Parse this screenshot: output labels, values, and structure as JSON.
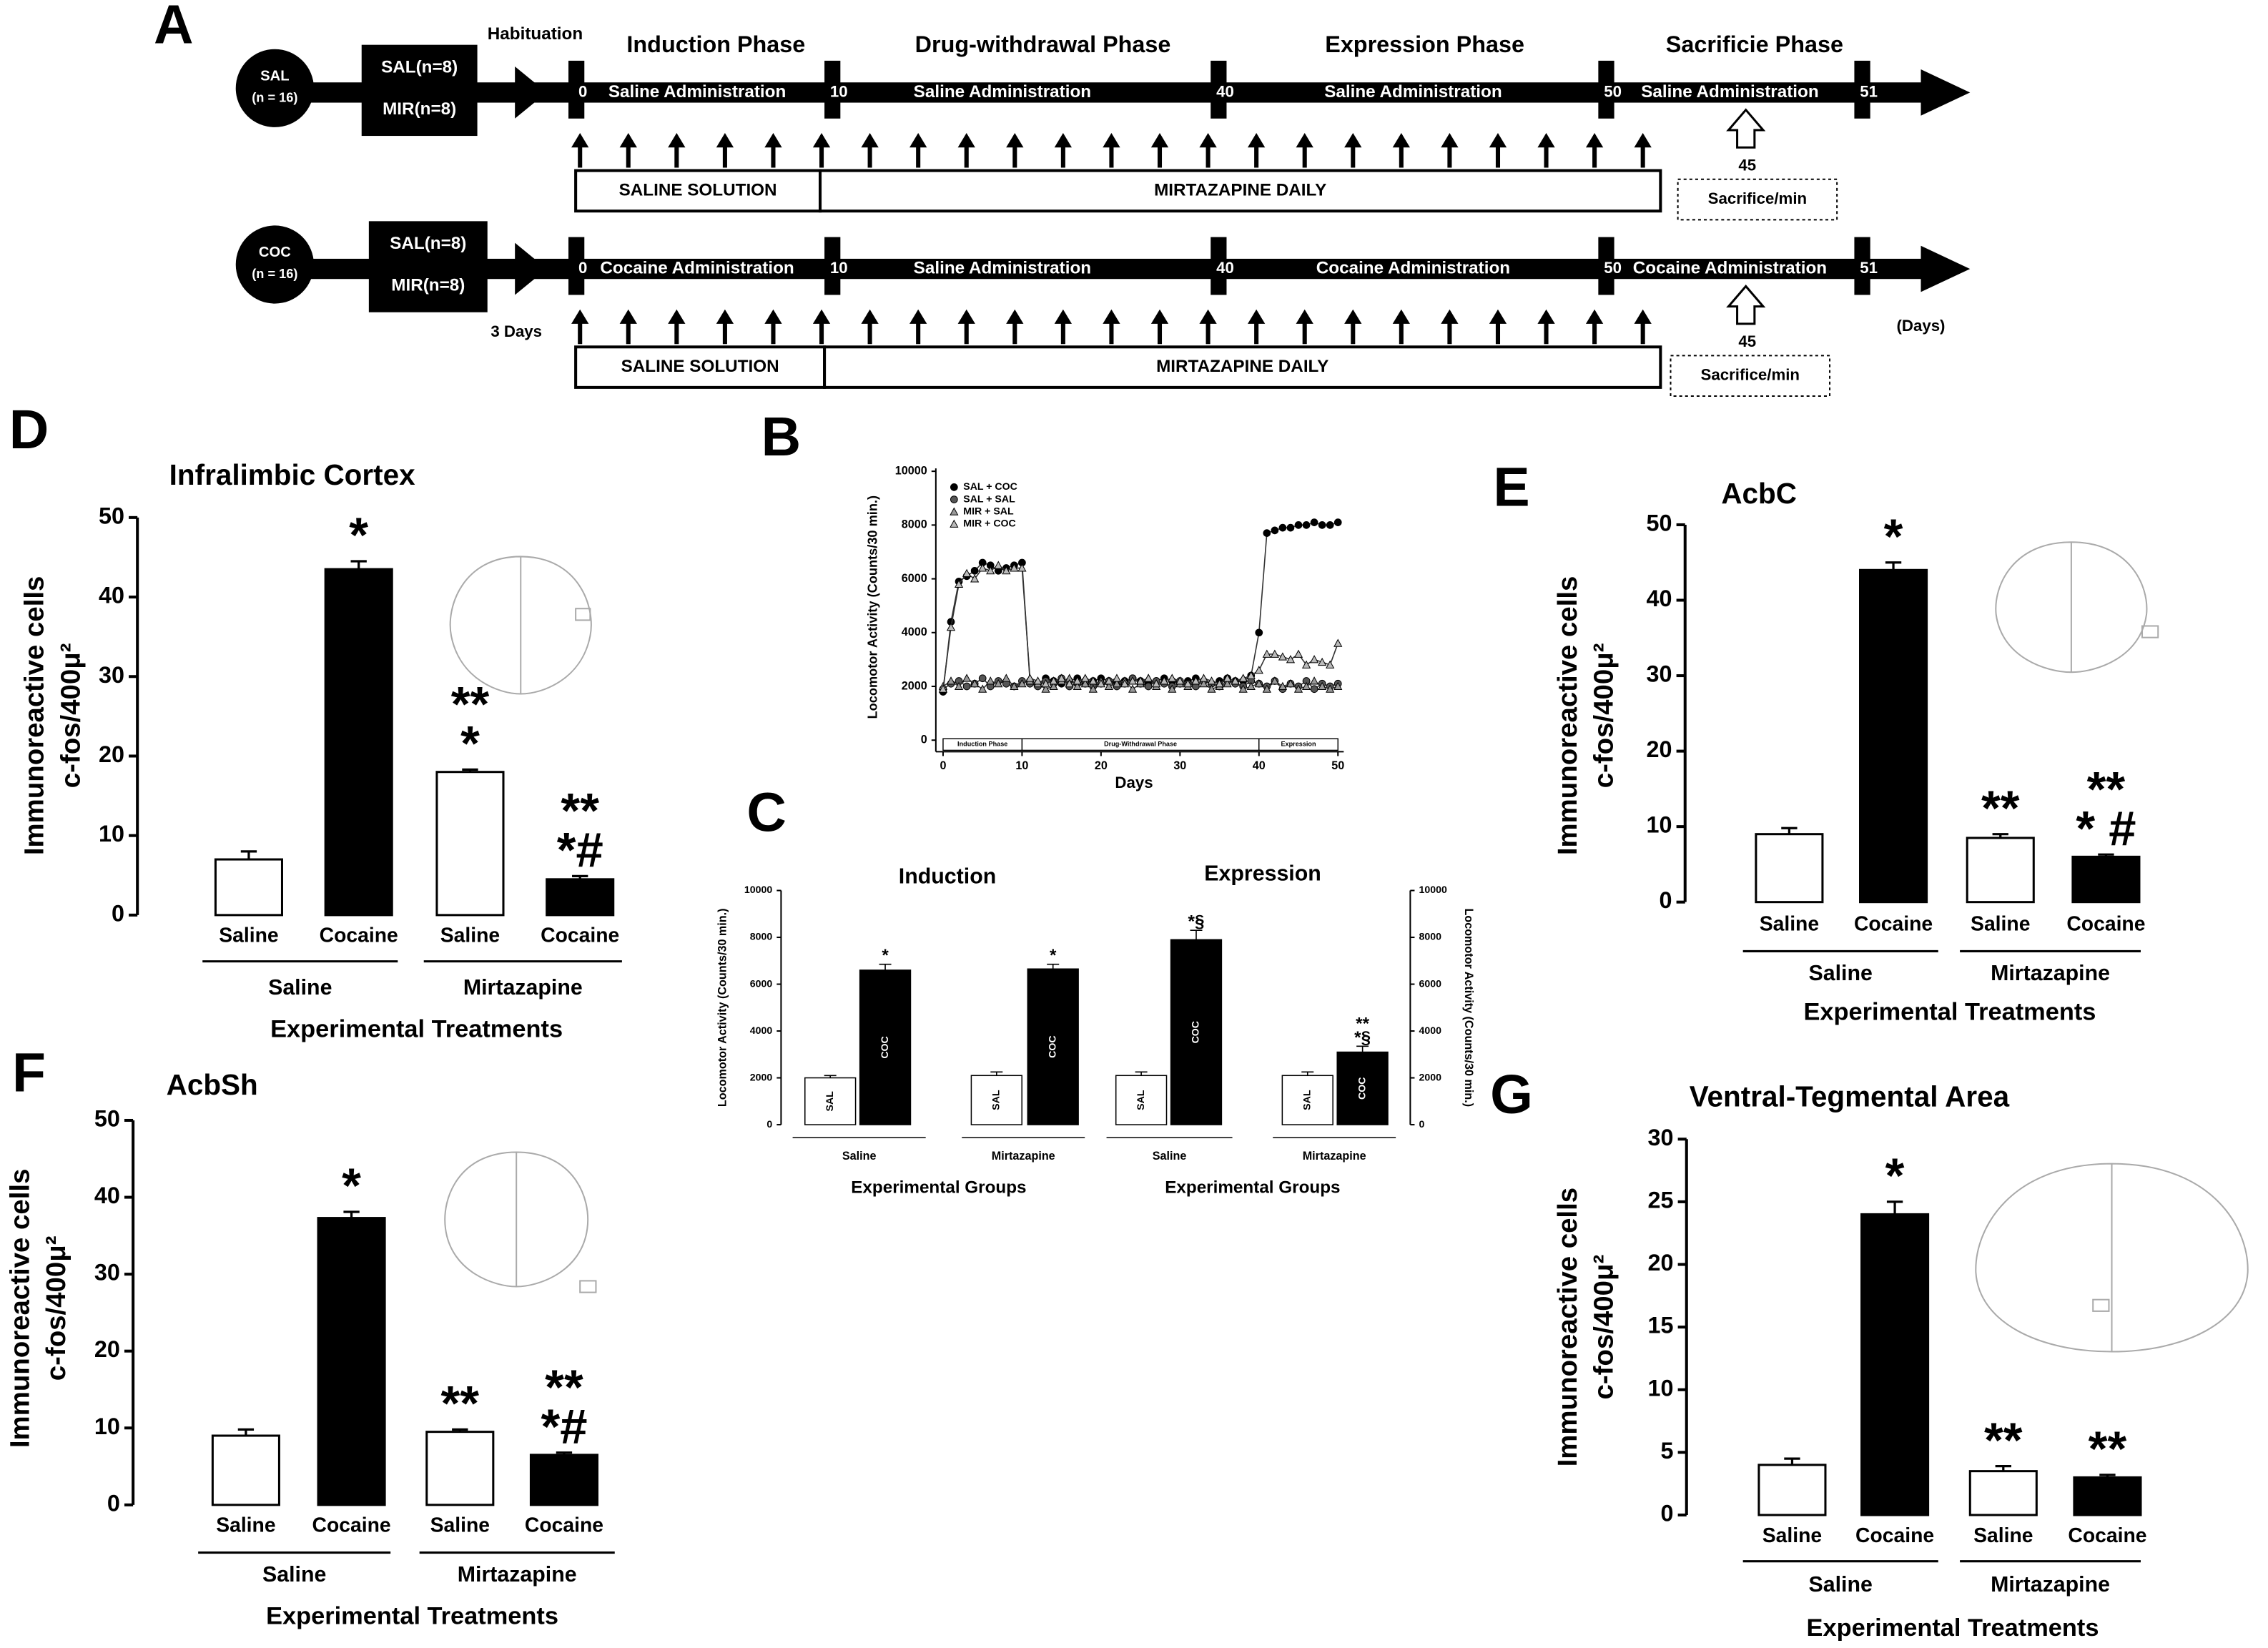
{
  "timeline": {
    "panel": "A",
    "habituation": "Habituation",
    "habituation_duration": "3 Days",
    "unit": "(Days)",
    "phases": [
      "Induction Phase",
      "Drug-withdrawal Phase",
      "Expression Phase",
      "Sacrificie Phase"
    ],
    "days": [
      0,
      10,
      40,
      50,
      51
    ],
    "rows": [
      {
        "group": "SAL",
        "n": "(n = 16)",
        "subgroups": [
          "SAL(n=8)",
          "MIR(n=8)"
        ],
        "administrations": [
          "Saline Administration",
          "Saline Administration",
          "Saline Administration",
          "Saline Administration"
        ],
        "treatments": [
          "SALINE SOLUTION",
          "MIRTAZAPINE DAILY"
        ],
        "sacrifice_time": 45,
        "sacrifice": "Sacrifice/min"
      },
      {
        "group": "COC",
        "n": "(n = 16)",
        "subgroups": [
          "SAL(n=8)",
          "MIR(n=8)"
        ],
        "administrations": [
          "Cocaine Administration",
          "Saline Administration",
          "Cocaine Administration",
          "Cocaine Administration"
        ],
        "treatments": [
          "SALINE SOLUTION",
          "MIRTAZAPINE DAILY"
        ],
        "sacrifice_time": 45,
        "sacrifice": "Sacrifice/min"
      }
    ]
  },
  "chart_data": [
    {
      "panel": "D",
      "type": "bar",
      "title": "Infralimbic Cortex",
      "ylabel": [
        "Immunoreactive cells",
        "c-fos/400μ²"
      ],
      "categories": [
        "Saline",
        "Cocaine",
        "Saline",
        "Cocaine"
      ],
      "groups": [
        "Saline",
        "Mirtazapine"
      ],
      "xlabel": "Experimental Treatments",
      "values": [
        7,
        43.5,
        18,
        4.5
      ],
      "errors": [
        1,
        1,
        0.3,
        0.4
      ],
      "colors": [
        "#ffffff",
        "#000000",
        "#ffffff",
        "#000000"
      ],
      "annotations": [
        [],
        [
          "*"
        ],
        [
          "**",
          "*"
        ],
        [
          "**",
          "*#"
        ]
      ],
      "ylim": [
        0,
        50
      ],
      "yticks": [
        0,
        10,
        20,
        30,
        40,
        50
      ]
    },
    {
      "panel": "E",
      "type": "bar",
      "title": "AcbC",
      "ylabel": [
        "Immunoreactive cells",
        "c-fos/400μ²"
      ],
      "categories": [
        "Saline",
        "Cocaine",
        "Saline",
        "Cocaine"
      ],
      "groups": [
        "Saline",
        "Mirtazapine"
      ],
      "xlabel": "Experimental Treatments",
      "values": [
        9,
        44,
        8.5,
        6
      ],
      "errors": [
        0.8,
        1,
        0.5,
        0.3
      ],
      "colors": [
        "#ffffff",
        "#000000",
        "#ffffff",
        "#000000"
      ],
      "annotations": [
        [],
        [
          "*"
        ],
        [
          "**"
        ],
        [
          "**",
          "* #"
        ]
      ],
      "ylim": [
        0,
        50
      ],
      "yticks": [
        0,
        10,
        20,
        30,
        40,
        50
      ]
    },
    {
      "panel": "F",
      "type": "bar",
      "title": "AcbSh",
      "ylabel": [
        "Immunoreactive cells",
        "c-fos/400μ²"
      ],
      "categories": [
        "Saline",
        "Cocaine",
        "Saline",
        "Cocaine"
      ],
      "groups": [
        "Saline",
        "Mirtazapine"
      ],
      "xlabel": "Experimental Treatments",
      "values": [
        9,
        37.3,
        9.5,
        6.5
      ],
      "errors": [
        0.8,
        0.8,
        0.3,
        0.3
      ],
      "colors": [
        "#ffffff",
        "#000000",
        "#ffffff",
        "#000000"
      ],
      "annotations": [
        [],
        [
          "*"
        ],
        [
          "**"
        ],
        [
          "**",
          "*#"
        ]
      ],
      "ylim": [
        0,
        50
      ],
      "yticks": [
        0,
        10,
        20,
        30,
        40,
        50
      ]
    },
    {
      "panel": "G",
      "type": "bar",
      "title": "Ventral-Tegmental Area",
      "ylabel": [
        "Immunoreactive cells",
        "c-fos/400μ²"
      ],
      "categories": [
        "Saline",
        "Cocaine",
        "Saline",
        "Cocaine"
      ],
      "groups": [
        "Saline",
        "Mirtazapine"
      ],
      "xlabel": "Experimental Treatments",
      "values": [
        4,
        24,
        3.5,
        3
      ],
      "errors": [
        0.5,
        1,
        0.4,
        0.2
      ],
      "colors": [
        "#ffffff",
        "#000000",
        "#ffffff",
        "#000000"
      ],
      "annotations": [
        [],
        [
          "*"
        ],
        [
          "**"
        ],
        [
          "**"
        ]
      ],
      "ylim": [
        0,
        30
      ],
      "yticks": [
        0,
        5,
        10,
        15,
        20,
        25,
        30
      ]
    },
    {
      "panel": "B",
      "type": "line",
      "xlabel": "Days",
      "ylabel": "Locomotor Activity (Counts/30 min.)",
      "x": [
        0,
        1,
        2,
        3,
        4,
        5,
        6,
        7,
        8,
        9,
        10,
        11,
        12,
        13,
        14,
        15,
        16,
        17,
        18,
        19,
        20,
        21,
        22,
        23,
        24,
        25,
        26,
        27,
        28,
        29,
        30,
        31,
        32,
        33,
        34,
        35,
        36,
        37,
        38,
        39,
        40,
        41,
        42,
        43,
        44,
        45,
        46,
        47,
        48,
        49,
        50
      ],
      "series": [
        {
          "name": "SAL + COC",
          "color": "#000000",
          "marker": "circle",
          "values": [
            1800,
            4400,
            5900,
            6100,
            6300,
            6600,
            6500,
            6300,
            6400,
            6500,
            6600,
            2200,
            2100,
            2300,
            2200,
            2100,
            2200,
            2300,
            2100,
            2200,
            2300,
            2200,
            2100,
            2200,
            2300,
            2200,
            2100,
            2200,
            2300,
            2200,
            2100,
            2200,
            2300,
            2200,
            2100,
            2200,
            2300,
            2200,
            2200,
            2400,
            4000,
            7700,
            7800,
            7900,
            7900,
            8000,
            8000,
            8100,
            8000,
            8000,
            8100
          ]
        },
        {
          "name": "SAL + SAL",
          "color": "#555555",
          "marker": "circle",
          "values": [
            1900,
            2100,
            2200,
            2000,
            2100,
            2300,
            2000,
            2200,
            2100,
            2000,
            2200,
            2100,
            2000,
            2200,
            2100,
            2300,
            2000,
            2100,
            2200,
            2000,
            2100,
            2200,
            2000,
            2100,
            2300,
            2100,
            2000,
            2200,
            2100,
            2000,
            2200,
            2100,
            2000,
            2200,
            2100,
            2000,
            2200,
            2100,
            2000,
            2200,
            2100,
            2000,
            2200,
            1900,
            2100,
            2000,
            2200,
            1900,
            2100,
            2000,
            2100
          ]
        },
        {
          "name": "MIR + SAL",
          "color": "#999999",
          "marker": "triangle",
          "values": [
            2000,
            2200,
            2000,
            2300,
            2100,
            1900,
            2200,
            2100,
            2300,
            2000,
            2100,
            2200,
            2100,
            1900,
            2000,
            2200,
            2300,
            2000,
            2100,
            1900,
            2200,
            2000,
            2100,
            2200,
            1900,
            2100,
            2300,
            2000,
            2200,
            1900,
            2100,
            2000,
            2200,
            2100,
            1900,
            2000,
            2100,
            2200,
            1900,
            2000,
            2100,
            1900,
            2200,
            2000,
            2100,
            1900,
            2000,
            2200,
            2000,
            1900,
            2000
          ]
        },
        {
          "name": "MIR + COC",
          "color": "#bbbbbb",
          "marker": "triangle",
          "values": [
            1900,
            4200,
            5800,
            6200,
            6000,
            6400,
            6300,
            6500,
            6300,
            6400,
            6400,
            2300,
            2200,
            2100,
            2200,
            2300,
            2100,
            2200,
            2300,
            2200,
            2100,
            2200,
            2300,
            2100,
            2200,
            2200,
            2300,
            2100,
            2200,
            2300,
            2200,
            2100,
            2200,
            2300,
            2200,
            2100,
            2300,
            2200,
            2300,
            2400,
            2600,
            3200,
            3200,
            3100,
            3000,
            3200,
            2800,
            3000,
            2900,
            2800,
            3600
          ]
        }
      ],
      "phases": [
        {
          "label": "Induction Phase",
          "start": 0,
          "end": 10
        },
        {
          "label": "Drug-Withdrawal Phase",
          "start": 10,
          "end": 40
        },
        {
          "label": "Expression",
          "start": 40,
          "end": 50
        }
      ],
      "xlim": [
        0,
        50
      ],
      "xticks": [
        0,
        10,
        20,
        30,
        40,
        50
      ],
      "ylim": [
        0,
        10000
      ],
      "yticks": [
        0,
        2000,
        4000,
        6000,
        8000,
        10000
      ]
    },
    {
      "panel": "C",
      "type": "bar",
      "title": "Induction",
      "ylabel": [
        "Locomotor Activity (Counts/30 min.)"
      ],
      "categories": [
        "SAL",
        "COC",
        "SAL",
        "COC"
      ],
      "groups": [
        "Saline",
        "Mirtazapine"
      ],
      "xlabel": "Experimental Groups",
      "values": [
        2000,
        6600,
        2100,
        6650
      ],
      "errors": [
        100,
        250,
        150,
        200
      ],
      "colors": [
        "#ffffff",
        "#000000",
        "#ffffff",
        "#000000"
      ],
      "annotations": [
        [],
        [
          "*"
        ],
        [],
        [
          "*"
        ]
      ],
      "ylim": [
        0,
        10000
      ],
      "yticks": [
        0,
        2000,
        4000,
        6000,
        8000,
        10000
      ]
    },
    {
      "type": "bar",
      "title": "Expression",
      "ylabel": [
        "Locomotor Activity (Counts/30 min.)"
      ],
      "categories": [
        "SAL",
        "COC",
        "SAL",
        "COC"
      ],
      "groups": [
        "Saline",
        "Mirtazapine"
      ],
      "xlabel": "Experimental Groups",
      "values": [
        2100,
        7900,
        2100,
        3100
      ],
      "errors": [
        150,
        400,
        150,
        250
      ],
      "colors": [
        "#ffffff",
        "#000000",
        "#ffffff",
        "#000000"
      ],
      "annotations": [
        [],
        [
          "*§"
        ],
        [],
        [
          "**",
          "*§"
        ]
      ],
      "ylim": [
        0,
        10000
      ],
      "yticks": [
        0,
        2000,
        4000,
        6000,
        8000,
        10000
      ]
    }
  ]
}
